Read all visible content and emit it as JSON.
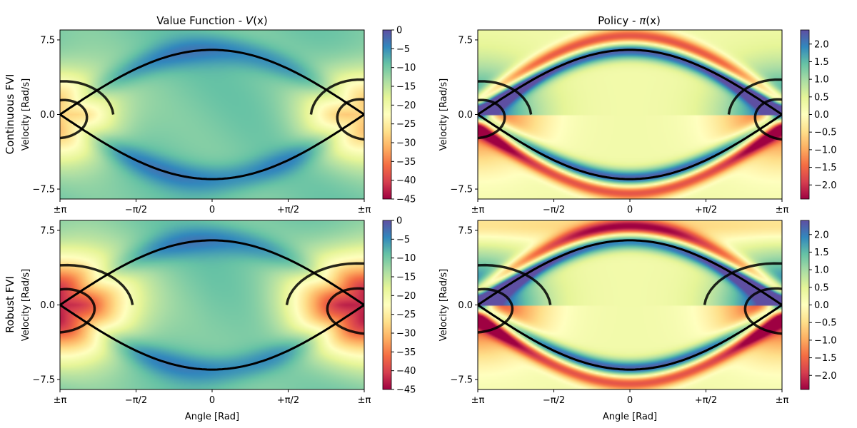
{
  "figure": {
    "row_labels": [
      "Continuous FVI",
      "Robust FVI"
    ],
    "col_titles": [
      "Value Function - V(x)",
      "Policy - π(x)"
    ],
    "col_title_parts": [
      {
        "prefix": "Value Function - ",
        "sym": "V",
        "suffix": "(x)"
      },
      {
        "prefix": "Policy - ",
        "sym": "π",
        "suffix": "(x)"
      }
    ]
  },
  "chart_data": [
    {
      "type": "heatmap",
      "row": 0,
      "col": 0,
      "kind": "value",
      "title": "Value Function - V(x)",
      "row_label": "Continuous FVI",
      "xlabel": "",
      "ylabel": "Velocity [Rad/s]",
      "xlim": [
        -3.1416,
        3.1416
      ],
      "ylim": [
        -8.5,
        8.5
      ],
      "xticks": [
        "±π",
        "−π/2",
        "0",
        "+π/2",
        "±π"
      ],
      "xtick_values": [
        -3.1416,
        -1.5708,
        0,
        1.5708,
        3.1416
      ],
      "yticks": [
        "7.5",
        "0.0",
        "−7.5"
      ],
      "ytick_values": [
        7.5,
        0.0,
        -7.5
      ],
      "colorbar": {
        "min": -45,
        "max": 0,
        "colormap": "Spectral",
        "ticks": [
          "0",
          "−5",
          "−10",
          "−15",
          "−20",
          "−25",
          "−30",
          "−35",
          "−40",
          "−45"
        ],
        "tick_values": [
          0,
          -5,
          -10,
          -15,
          -20,
          -25,
          -30,
          -35,
          -40,
          -45
        ]
      }
    },
    {
      "type": "heatmap",
      "row": 0,
      "col": 1,
      "kind": "policy",
      "title": "Policy - π(x)",
      "row_label": "Continuous FVI",
      "xlabel": "",
      "ylabel": "Velocity [Rad/s]",
      "xlim": [
        -3.1416,
        3.1416
      ],
      "ylim": [
        -8.5,
        8.5
      ],
      "xticks": [
        "±π",
        "−π/2",
        "0",
        "+π/2",
        "±π"
      ],
      "xtick_values": [
        -3.1416,
        -1.5708,
        0,
        1.5708,
        3.1416
      ],
      "yticks": [
        "7.5",
        "0.0",
        "−7.5"
      ],
      "ytick_values": [
        7.5,
        0.0,
        -7.5
      ],
      "colorbar": {
        "min": -2.4,
        "max": 2.4,
        "colormap": "Spectral",
        "ticks": [
          "2.0",
          "1.5",
          "1.0",
          "0.5",
          "0.0",
          "−0.5",
          "−1.0",
          "−1.5",
          "−2.0"
        ],
        "tick_values": [
          2.0,
          1.5,
          1.0,
          0.5,
          0.0,
          -0.5,
          -1.0,
          -1.5,
          -2.0
        ]
      }
    },
    {
      "type": "heatmap",
      "row": 1,
      "col": 0,
      "kind": "value",
      "title": "",
      "row_label": "Robust FVI",
      "xlabel": "Angle [Rad]",
      "ylabel": "Velocity [Rad/s]",
      "xlim": [
        -3.1416,
        3.1416
      ],
      "ylim": [
        -8.5,
        8.5
      ],
      "xticks": [
        "±π",
        "−π/2",
        "0",
        "+π/2",
        "±π"
      ],
      "xtick_values": [
        -3.1416,
        -1.5708,
        0,
        1.5708,
        3.1416
      ],
      "yticks": [
        "7.5",
        "0.0",
        "−7.5"
      ],
      "ytick_values": [
        7.5,
        0.0,
        -7.5
      ],
      "colorbar": {
        "min": -45,
        "max": 0,
        "colormap": "Spectral",
        "ticks": [
          "0",
          "−5",
          "−10",
          "−15",
          "−20",
          "−25",
          "−30",
          "−35",
          "−40",
          "−45"
        ],
        "tick_values": [
          0,
          -5,
          -10,
          -15,
          -20,
          -25,
          -30,
          -35,
          -40,
          -45
        ]
      }
    },
    {
      "type": "heatmap",
      "row": 1,
      "col": 1,
      "kind": "policy",
      "title": "",
      "row_label": "Robust FVI",
      "xlabel": "Angle [Rad]",
      "ylabel": "Velocity [Rad/s]",
      "xlim": [
        -3.1416,
        3.1416
      ],
      "ylim": [
        -8.5,
        8.5
      ],
      "xticks": [
        "±π",
        "−π/2",
        "0",
        "+π/2",
        "±π"
      ],
      "xtick_values": [
        -3.1416,
        -1.5708,
        0,
        1.5708,
        3.1416
      ],
      "yticks": [
        "7.5",
        "0.0",
        "−7.5"
      ],
      "ytick_values": [
        7.5,
        0.0,
        -7.5
      ],
      "colorbar": {
        "min": -2.4,
        "max": 2.4,
        "colormap": "Spectral",
        "ticks": [
          "2.0",
          "1.5",
          "1.0",
          "0.5",
          "0.0",
          "−0.5",
          "−1.0",
          "−1.5",
          "−2.0"
        ],
        "tick_values": [
          2.0,
          1.5,
          1.0,
          0.5,
          0.0,
          -0.5,
          -1.0,
          -1.5,
          -2.0
        ]
      }
    }
  ]
}
